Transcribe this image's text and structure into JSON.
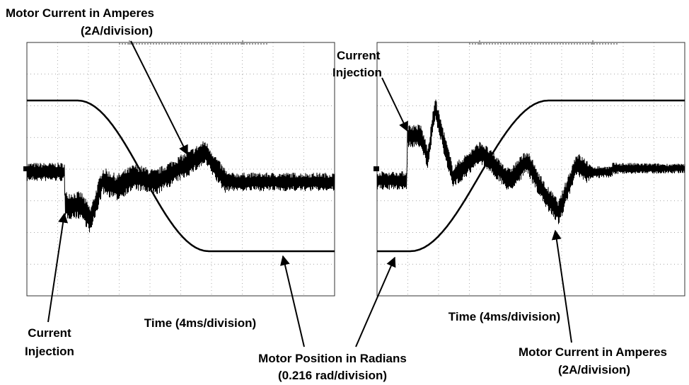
{
  "annotations": {
    "top_left_label": "Motor Current in Amperes",
    "top_left_scale": "(2A/division)",
    "left_injection": [
      "Current",
      "Injection"
    ],
    "right_injection": [
      "Current",
      "Injection"
    ],
    "left_time": "Time (4ms/division)",
    "right_time": "Time (4ms/division)",
    "position_label": "Motor Position in Radians",
    "position_scale": "(0.216 rad/division)",
    "bottom_right_label": "Motor Current in Amperes",
    "bottom_right_scale": "(2A/division)"
  }
}
